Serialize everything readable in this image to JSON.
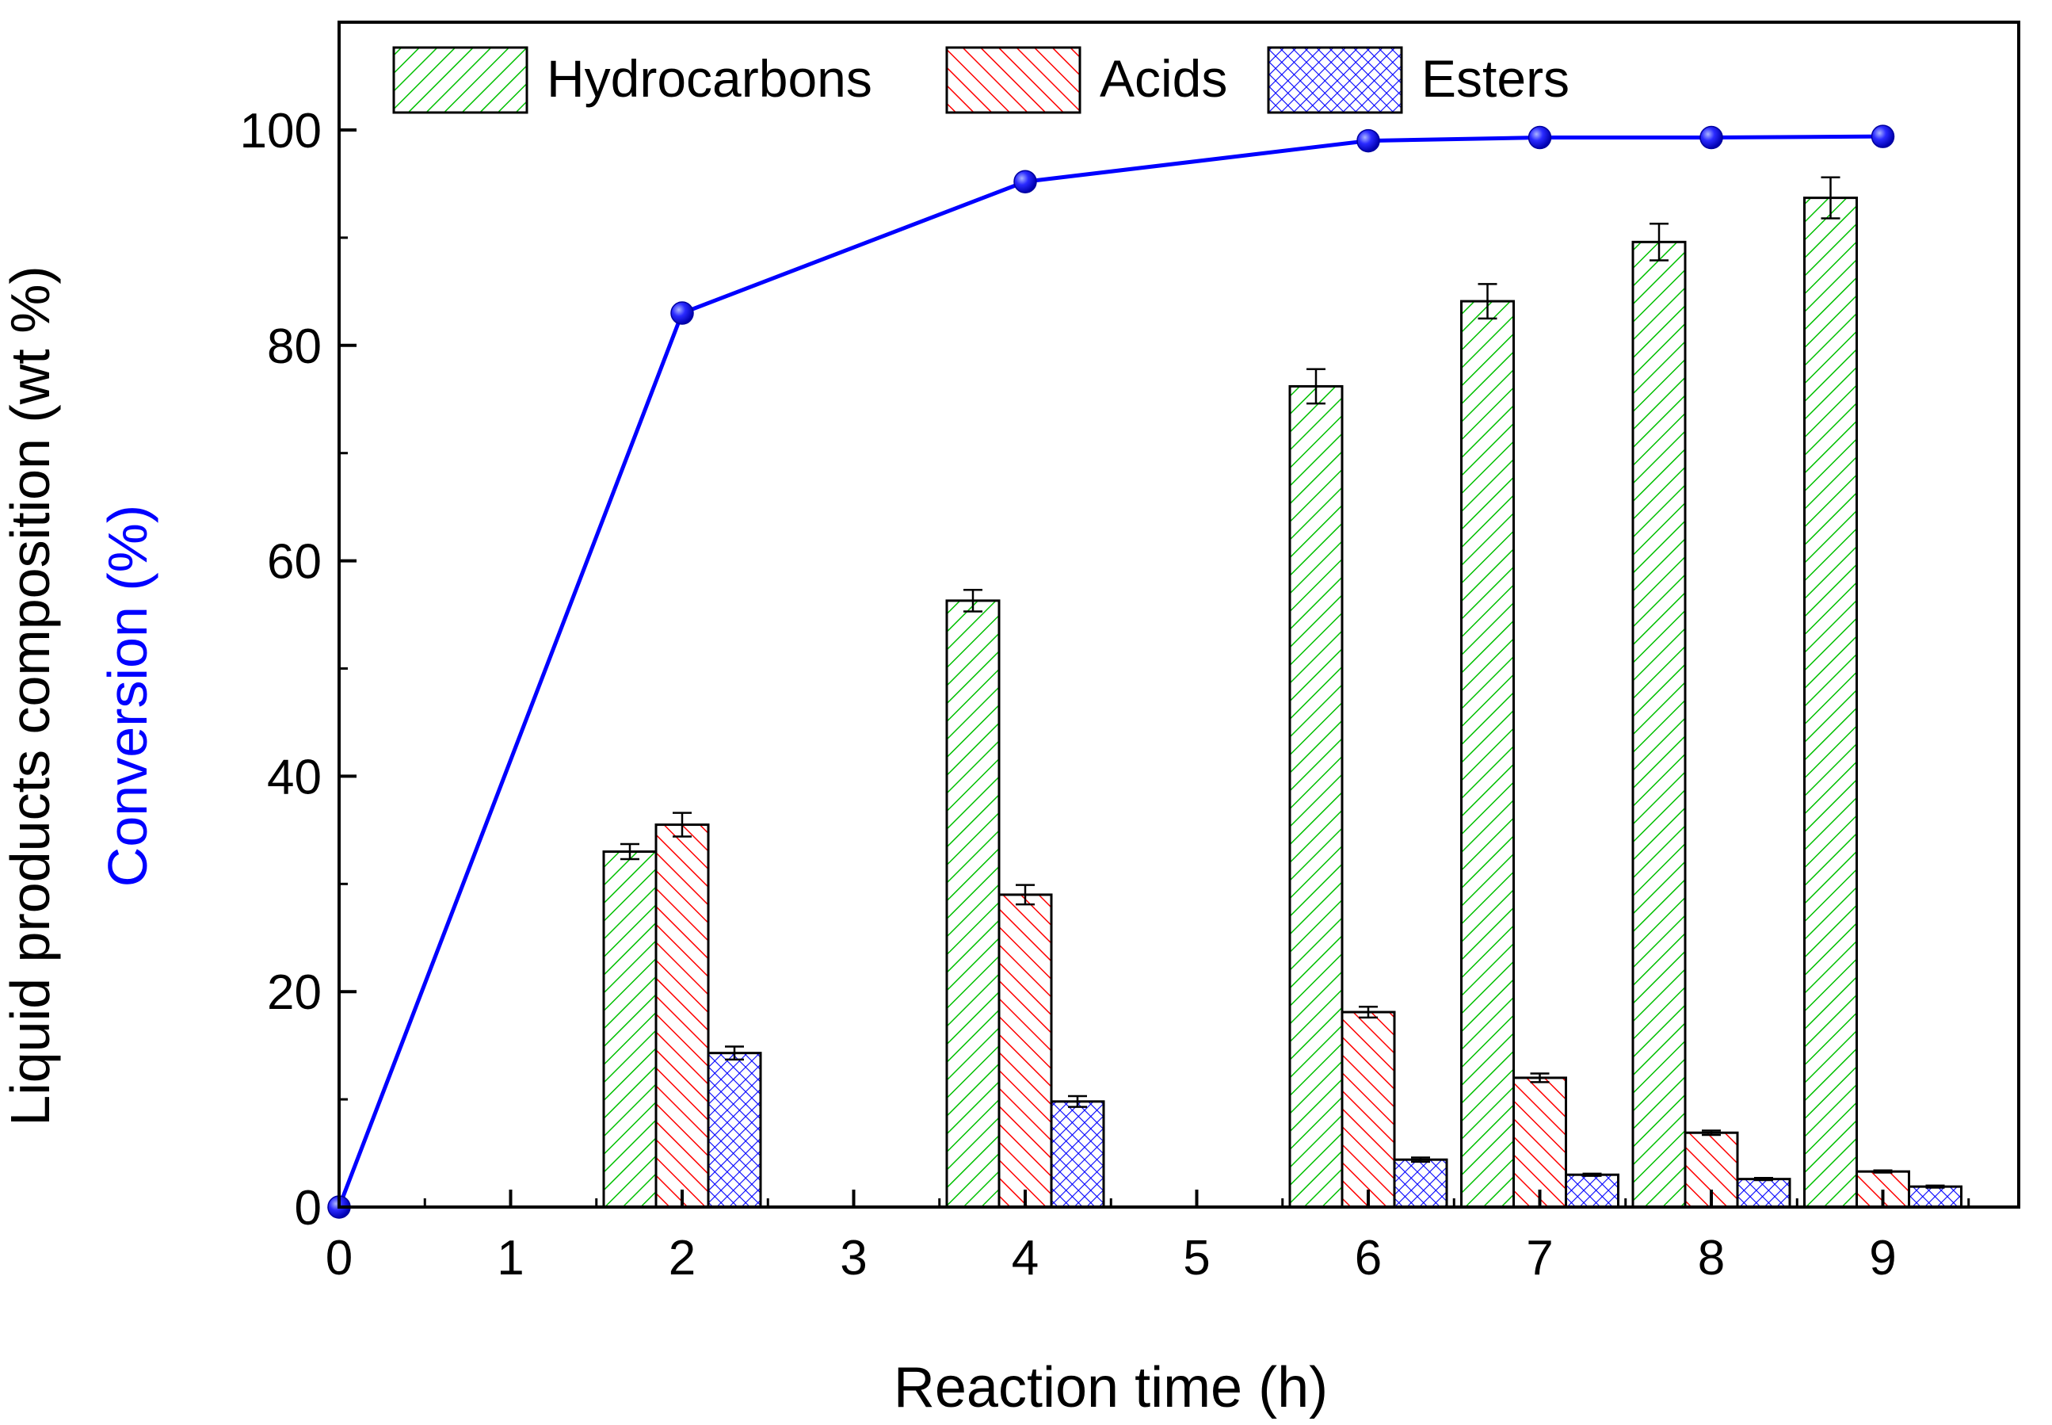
{
  "chart_data": {
    "type": "bar",
    "xlabel": "Reaction time (h)",
    "ylabel_parts": [
      {
        "text": "Liquid products composition (wt %)",
        "color": "#000000"
      },
      {
        "text": "Conversion (%)",
        "color": "#0000ff"
      }
    ],
    "xlim": [
      0,
      9.8
    ],
    "ylim": [
      0,
      110
    ],
    "xticks": [
      0,
      1,
      2,
      3,
      4,
      5,
      6,
      7,
      8,
      9
    ],
    "yticks": [
      0,
      20,
      40,
      60,
      80,
      100
    ],
    "categories": [
      2,
      4,
      6,
      7,
      8,
      9
    ],
    "series": [
      {
        "name": "Hydrocarbons",
        "color": "#00c000",
        "pattern": "diag-up",
        "values": [
          33.0,
          56.3,
          76.2,
          84.1,
          89.6,
          93.7
        ],
        "errors": [
          0.7,
          1.0,
          1.6,
          1.6,
          1.7,
          1.9
        ]
      },
      {
        "name": "Acids",
        "color": "#ff0000",
        "pattern": "diag-down",
        "values": [
          35.5,
          29.0,
          18.1,
          12.0,
          6.9,
          3.3
        ],
        "errors": [
          1.1,
          0.9,
          0.5,
          0.4,
          0.2,
          0.1
        ]
      },
      {
        "name": "Esters",
        "color": "#0000ff",
        "pattern": "crosshatch",
        "values": [
          14.3,
          9.8,
          4.4,
          3.0,
          2.6,
          1.9
        ],
        "errors": [
          0.6,
          0.5,
          0.2,
          0.1,
          0.1,
          0.1
        ]
      }
    ],
    "line": {
      "name": "Conversion",
      "color": "#0000ff",
      "x": [
        0,
        2,
        4,
        6,
        7,
        8,
        9
      ],
      "y": [
        0,
        83.0,
        95.2,
        99.0,
        99.3,
        99.3,
        99.4
      ]
    },
    "legend_position": "top-left"
  }
}
